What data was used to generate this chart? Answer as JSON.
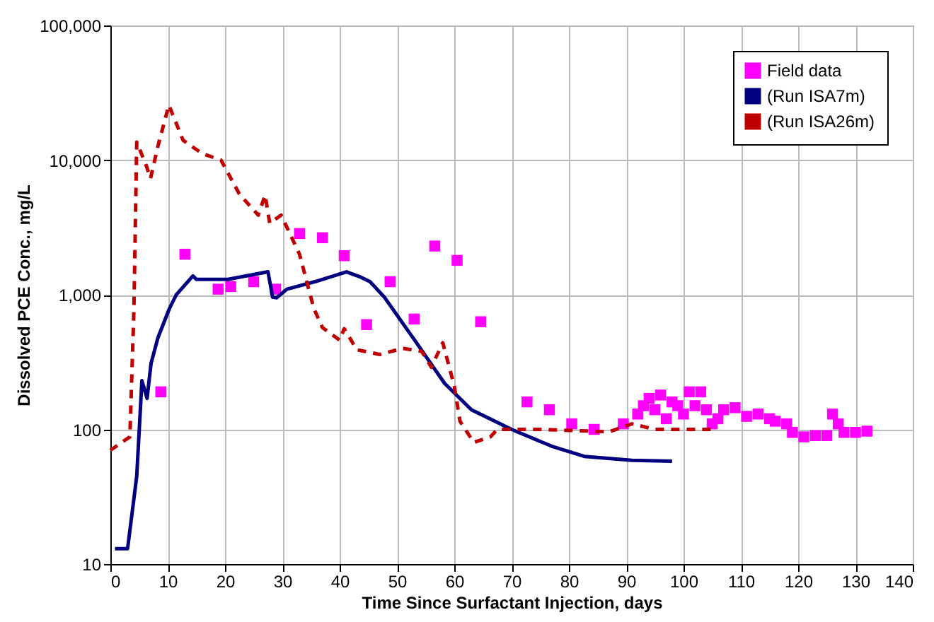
{
  "chart_data": {
    "type": "line",
    "xlabel": "Time Since Surfactant Injection, days",
    "ylabel": "Dissolved PCE Conc., mg/L",
    "xlim": [
      0,
      140
    ],
    "xticks": [
      0,
      10,
      20,
      30,
      40,
      50,
      60,
      70,
      80,
      90,
      100,
      110,
      120,
      130,
      140
    ],
    "ylim": [
      10,
      100000
    ],
    "yticks": [
      10,
      100,
      {
        "value": 1000,
        "label": "1,000"
      },
      {
        "value": 10000,
        "label": "10,000"
      },
      {
        "value": 100000,
        "label": "100,000"
      }
    ],
    "log": "y",
    "grid": true,
    "legend": "top right",
    "series": [
      {
        "name": "Field data",
        "type": "scatter",
        "marker": "square",
        "color": "#ff00ff",
        "x": [
          8.8,
          13,
          18.8,
          21,
          25,
          28.8,
          33,
          37,
          40.8,
          44.7,
          48.8,
          53,
          56.6,
          60.5,
          64.6,
          72.7,
          76.6,
          80.5,
          84.4,
          89.5,
          92,
          93,
          94,
          95,
          96,
          97,
          98,
          99,
          100,
          101,
          102,
          103,
          104,
          105,
          106,
          107,
          109,
          111,
          113,
          115,
          116,
          118,
          119,
          121,
          123,
          125,
          126,
          127,
          128,
          130,
          132
        ],
        "values": [
          190,
          2000,
          1100,
          1150,
          1250,
          1100,
          2850,
          2650,
          1950,
          600,
          1250,
          660,
          2300,
          1800,
          630,
          160,
          140,
          110,
          100,
          110,
          130,
          150,
          170,
          140,
          180,
          120,
          160,
          150,
          130,
          190,
          150,
          190,
          140,
          110,
          120,
          140,
          145,
          125,
          130,
          120,
          115,
          110,
          95,
          88,
          90,
          90,
          130,
          110,
          95,
          95,
          97
        ]
      },
      {
        "name": "(Run ISA7m)",
        "color": "#000080",
        "line_style": "solid",
        "x": [
          0.8,
          3,
          4.6,
          5.5,
          6.4,
          7.1,
          8.3,
          10.3,
          11.5,
          14.4,
          15,
          20.5,
          27.5,
          28.3,
          29,
          30.8,
          35.7,
          41.2,
          43.7,
          45.3,
          47.8,
          53.4,
          58.3,
          63,
          70,
          77,
          82.7,
          91,
          98
        ],
        "values": [
          13,
          13,
          45,
          230,
          170,
          310,
          480,
          790,
          1000,
          1380,
          1300,
          1300,
          1480,
          960,
          950,
          1100,
          1250,
          1480,
          1350,
          1250,
          960,
          440,
          220,
          140,
          100,
          75,
          63,
          59,
          58
        ]
      },
      {
        "name": "(Run ISA26m)",
        "color": "#c00000",
        "line_style": "dashed",
        "x": [
          0,
          3.4,
          4.1,
          4.6,
          6.3,
          7,
          8.3,
          10.2,
          12.7,
          16,
          19.3,
          22.5,
          25.8,
          27,
          27.8,
          29.8,
          33,
          35.5,
          37,
          40,
          40.8,
          43,
          47,
          51,
          54.3,
          56,
          58,
          60,
          61,
          63.4,
          66.3,
          67.5,
          75,
          87,
          91,
          95,
          105
        ],
        "values": [
          70,
          88,
          760,
          13600,
          9000,
          7300,
          12700,
          25600,
          14000,
          11200,
          10000,
          5600,
          3900,
          5500,
          3400,
          3900,
          2000,
          790,
          570,
          460,
          560,
          390,
          360,
          400,
          380,
          290,
          440,
          210,
          115,
          80,
          88,
          100,
          100,
          96,
          110,
          100,
          100
        ]
      }
    ]
  }
}
